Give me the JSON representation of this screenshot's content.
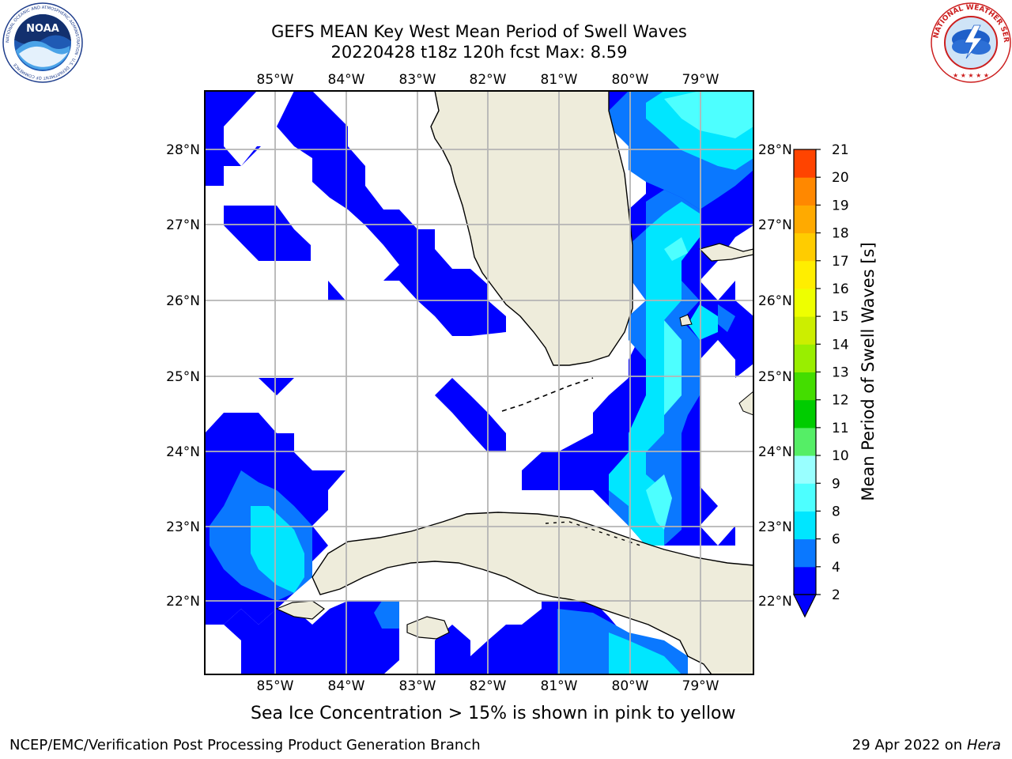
{
  "title": {
    "line1": "GEFS MEAN Key West Mean Period of Swell Waves",
    "line2": "20220428 t18z 120h fcst   Max: 8.59"
  },
  "logos": {
    "noaa_text": "NOAA",
    "noaa_ring": "NATIONAL OCEANIC AND ATMOSPHERIC ADMINISTRATION · U.S. DEPARTMENT OF COMMERCE",
    "nws_ring": "NATIONAL WEATHER SERVICE"
  },
  "map": {
    "longitude_labels": [
      "85°W",
      "84°W",
      "83°W",
      "82°W",
      "81°W",
      "80°W",
      "79°W"
    ],
    "latitude_labels": [
      "28°N",
      "27°N",
      "26°N",
      "25°N",
      "24°N",
      "23°N",
      "22°N"
    ],
    "land_color": "#eeecdb",
    "grid_color": "#b4b4b4"
  },
  "colorbar": {
    "label": "Mean Period of Swell Waves [s]",
    "ticks": [
      "2",
      "4",
      "6",
      "8",
      "9",
      "10",
      "11",
      "12",
      "13",
      "14",
      "15",
      "16",
      "17",
      "18",
      "19",
      "20",
      "21"
    ],
    "colors": [
      "#0000ff",
      "#0a78ff",
      "#00e6ff",
      "#4dffff",
      "#99ffff",
      "#55ee66",
      "#00cc00",
      "#44dd00",
      "#99ee00",
      "#ccee00",
      "#eeff00",
      "#ffee00",
      "#ffcc00",
      "#ffaa00",
      "#ff8800",
      "#ff4400",
      "#ff0000"
    ],
    "extend": "min"
  },
  "seaice_note": "Sea Ice Concentration > 15% is shown in pink to yellow",
  "footer": {
    "left": "NCEP/EMC/Verification Post Processing Product Generation Branch",
    "right_prefix": "29 Apr 2022 on ",
    "right_host": "Hera"
  }
}
